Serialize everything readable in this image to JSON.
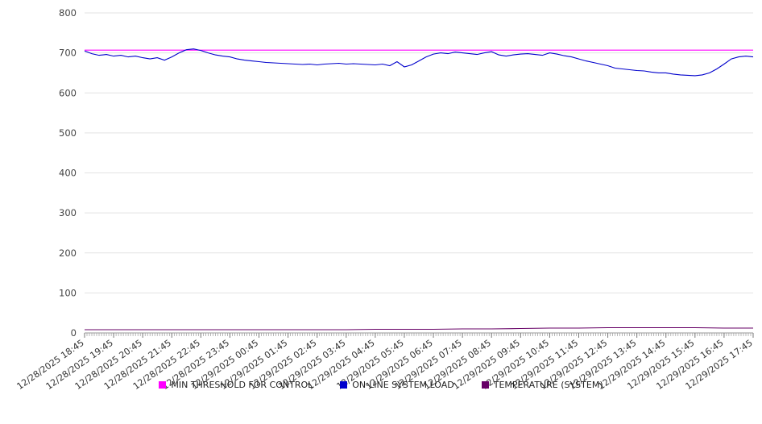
{
  "chart_data": {
    "type": "line",
    "title": "",
    "xlabel": "",
    "ylabel": "",
    "ylim": [
      0,
      800
    ],
    "yticks": [
      0,
      100,
      200,
      300,
      400,
      500,
      600,
      700,
      800
    ],
    "grid": true,
    "legend_position": "bottom",
    "x_labels": [
      "12/28/2025 18:45",
      "12/28/2025 19:45",
      "12/28/2025 20:45",
      "12/28/2025 21:45",
      "12/28/2025 22:45",
      "12/28/2025 23:45",
      "12/29/2025 00:45",
      "12/29/2025 01:45",
      "12/29/2025 02:45",
      "12/29/2025 03:45",
      "12/29/2025 04:45",
      "12/29/2025 05:45",
      "12/29/2025 06:45",
      "12/29/2025 07:45",
      "12/29/2025 08:45",
      "12/29/2025 09:45",
      "12/29/2025 10:45",
      "12/29/2025 11:45",
      "12/29/2025 12:45",
      "12/29/2025 13:45",
      "12/29/2025 14:45",
      "12/29/2025 15:45",
      "12/29/2025 16:45",
      "12/29/2025 17:45"
    ],
    "series": [
      {
        "name": "MIN THRESHOLD FOR CONTROL",
        "color": "#ff00ff",
        "values": [
          707,
          707
        ]
      },
      {
        "name": "ON-LINE SYSTEM LOAD",
        "color": "#0000cc",
        "values": [
          705,
          698,
          694,
          696,
          692,
          694,
          690,
          692,
          688,
          685,
          688,
          682,
          690,
          700,
          708,
          710,
          706,
          700,
          695,
          692,
          690,
          685,
          682,
          680,
          678,
          676,
          675,
          674,
          673,
          672,
          671,
          672,
          670,
          672,
          673,
          674,
          672,
          673,
          672,
          671,
          670,
          672,
          668,
          678,
          665,
          670,
          680,
          690,
          697,
          700,
          698,
          702,
          700,
          698,
          696,
          700,
          703,
          695,
          692,
          695,
          697,
          698,
          696,
          694,
          700,
          697,
          693,
          690,
          685,
          680,
          676,
          672,
          668,
          662,
          660,
          658,
          656,
          655,
          652,
          650,
          650,
          647,
          645,
          644,
          643,
          645,
          650,
          660,
          672,
          685,
          690,
          692,
          690
        ]
      },
      {
        "name": "TEMPERATURE (SYSTEM)",
        "color": "#660066",
        "values": [
          8,
          8,
          8,
          8,
          8,
          8,
          8,
          8,
          8,
          8,
          9,
          9,
          9,
          10,
          10,
          11,
          12,
          12,
          13,
          13,
          13,
          13,
          12,
          12
        ]
      }
    ]
  }
}
